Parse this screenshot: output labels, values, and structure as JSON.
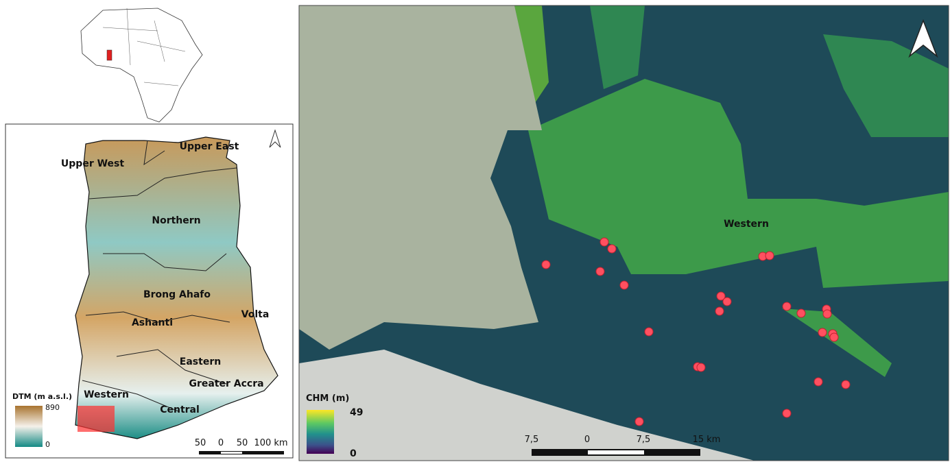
{
  "ghana_map": {
    "regions": [
      "Upper East",
      "Upper West",
      "Northern",
      "Brong Ahafo",
      "Volta",
      "Ashanti",
      "Eastern",
      "Greater Accra",
      "Western",
      "Central"
    ],
    "legend": {
      "title": "DTM (m a.s.l.)",
      "max": 890,
      "min": 0
    },
    "scale_bar": [
      "50",
      "0",
      "50",
      "100 km"
    ]
  },
  "study_area_map": {
    "region_label": "Western",
    "legend": {
      "title": "CHM (m)",
      "max": 49,
      "min": 0
    },
    "scale_bar": [
      "7,5",
      "0",
      "7,5",
      "15 km"
    ]
  }
}
